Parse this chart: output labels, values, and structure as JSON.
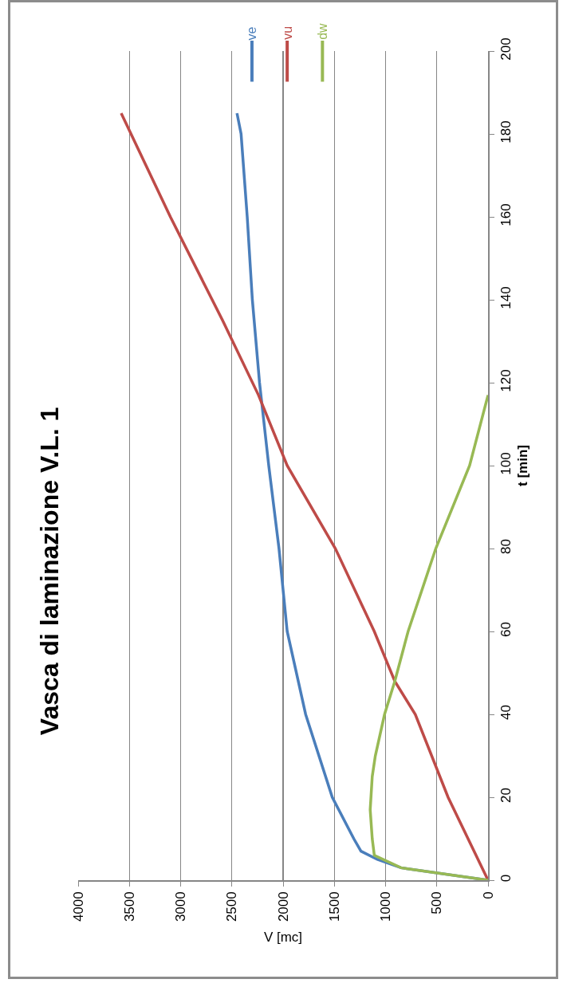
{
  "chart_data": {
    "type": "line",
    "title": "Vasca di laminazione V.L. 1",
    "xlabel": "V [mc]",
    "ylabel": "t [min]",
    "series": [
      {
        "name": "ve",
        "color": "#4a7ebb",
        "x": [
          0,
          850,
          1080,
          1240,
          1310,
          1520,
          1780,
          1960,
          2040,
          2140,
          2230,
          2300,
          2350,
          2410,
          2450
        ],
        "values": [
          0,
          3,
          5,
          7,
          10,
          20,
          40,
          60,
          80,
          100,
          120,
          140,
          160,
          180,
          185
        ]
      },
      {
        "name": "vu",
        "color": "#be4b48",
        "x": [
          0,
          390,
          710,
          910,
          1110,
          1490,
          1960,
          2240,
          2590,
          3100,
          3580
        ],
        "values": [
          0,
          20,
          40,
          48,
          60,
          80,
          100,
          117,
          135,
          160,
          185
        ]
      },
      {
        "name": "dw",
        "color": "#98b954",
        "x": [
          0,
          850,
          1110,
          1130,
          1150,
          1130,
          1100,
          1010,
          910,
          780,
          510,
          180,
          0
        ],
        "values": [
          0,
          3,
          6,
          10,
          17,
          25,
          30,
          40,
          48,
          60,
          80,
          100,
          117
        ]
      }
    ],
    "xlim": [
      4000,
      0
    ],
    "xticks": [
      0,
      500,
      1000,
      1500,
      2000,
      2500,
      3000,
      3500,
      4000
    ],
    "ylim": [
      0,
      200
    ],
    "yticks": [
      0,
      20,
      40,
      60,
      80,
      100,
      120,
      140,
      160,
      180,
      200
    ],
    "grid": "x",
    "legend": "top",
    "marker": "none",
    "line_style": "solid"
  }
}
